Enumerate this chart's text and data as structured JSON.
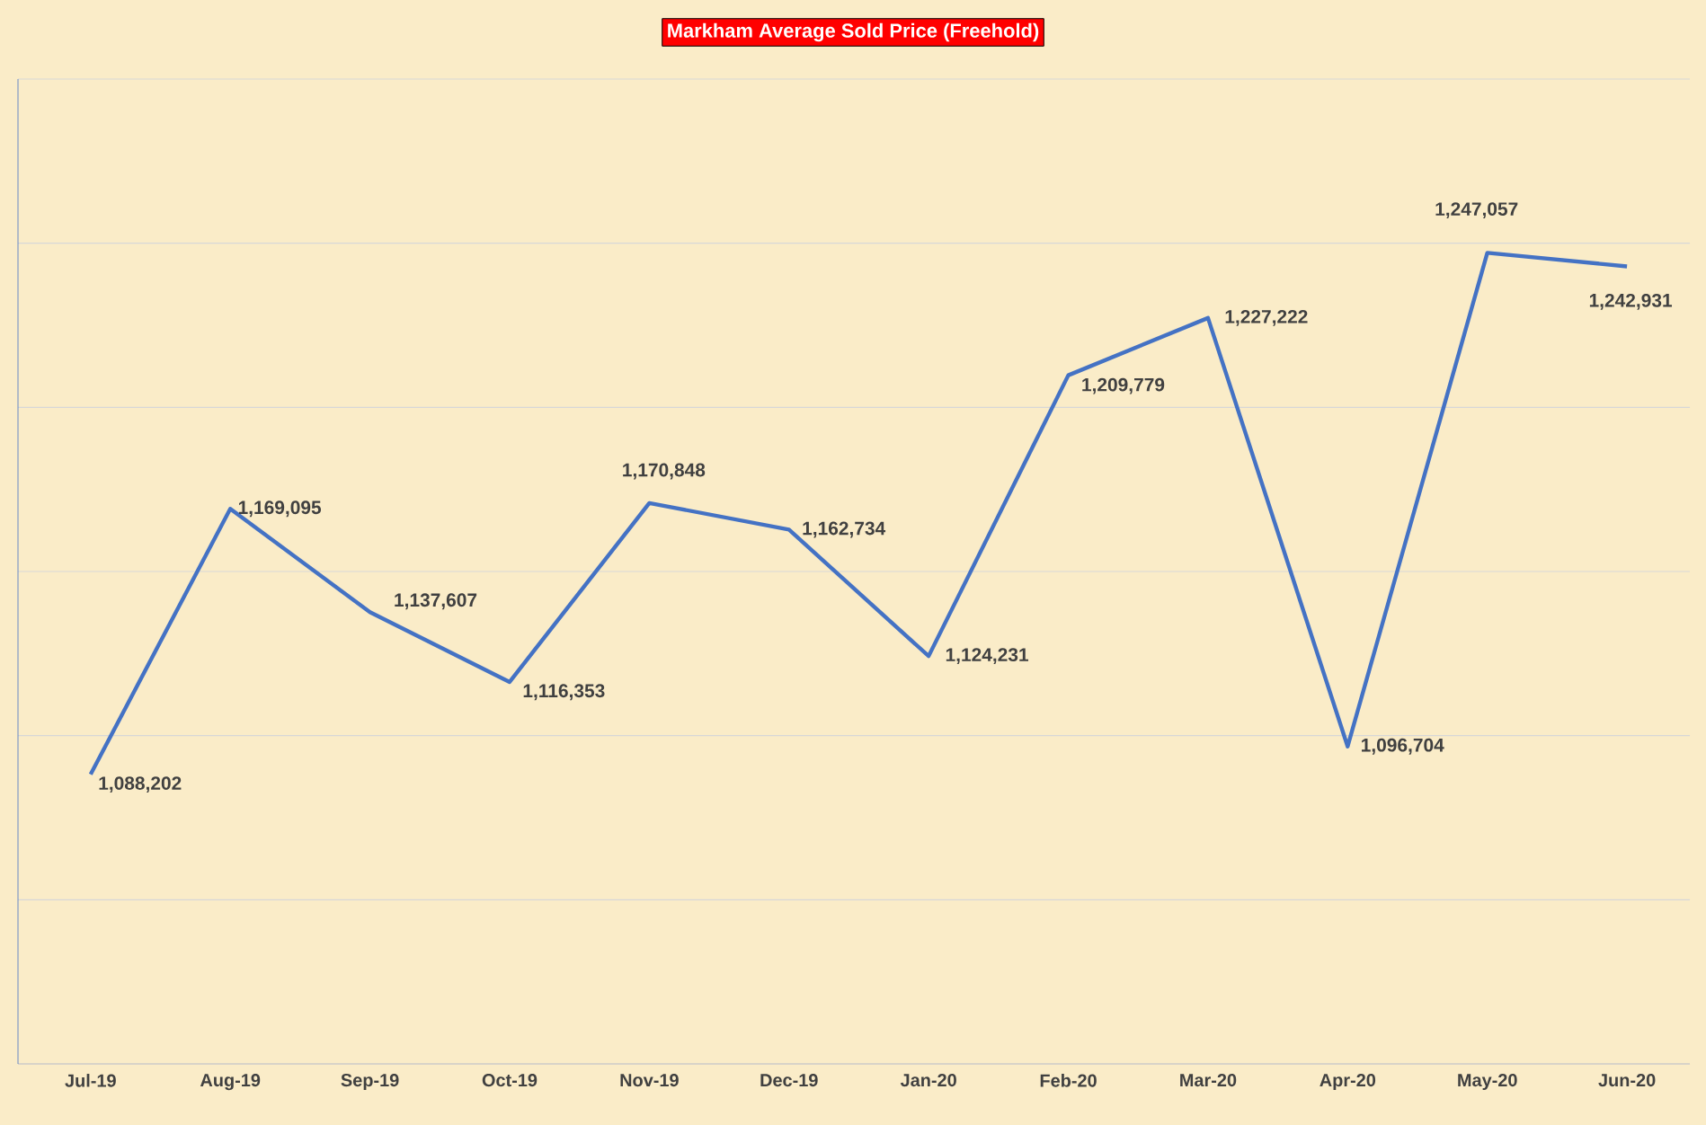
{
  "chart_data": {
    "type": "line",
    "title": "Markham Average Sold Price (Freehold)",
    "categories": [
      "Jul-19",
      "Aug-19",
      "Sep-19",
      "Oct-19",
      "Nov-19",
      "Dec-19",
      "Jan-20",
      "Feb-20",
      "Mar-20",
      "Apr-20",
      "May-20",
      "Jun-20"
    ],
    "series": [
      {
        "color": "#4472c4",
        "values": [
          1088202,
          1169095,
          1137607,
          1116353,
          1170848,
          1162734,
          1124231,
          1209779,
          1227222,
          1096704,
          1247057,
          1242931
        ],
        "value_labels": [
          "1,088,202",
          "1,169,095",
          "1,137,607",
          "1,116,353",
          "1,170,848",
          "1,162,734",
          "1,124,231",
          "1,209,779",
          "1,227,222",
          "1,096,704",
          "1,247,057",
          "1,242,931"
        ]
      }
    ],
    "ylim": [
      1000000,
      1300000
    ],
    "yticks": [
      {
        "value": 1000000,
        "label": null
      },
      {
        "value": 1050000,
        "label": null
      },
      {
        "value": 1100000,
        "label": null
      },
      {
        "value": 1150000,
        "label": null
      },
      {
        "value": 1200000,
        "label": null
      },
      {
        "value": 1250000,
        "label": null
      },
      {
        "value": 1300000,
        "label": null
      }
    ],
    "grid": "y",
    "tick_labels": "x",
    "marker": "none",
    "line_style": "solid"
  }
}
